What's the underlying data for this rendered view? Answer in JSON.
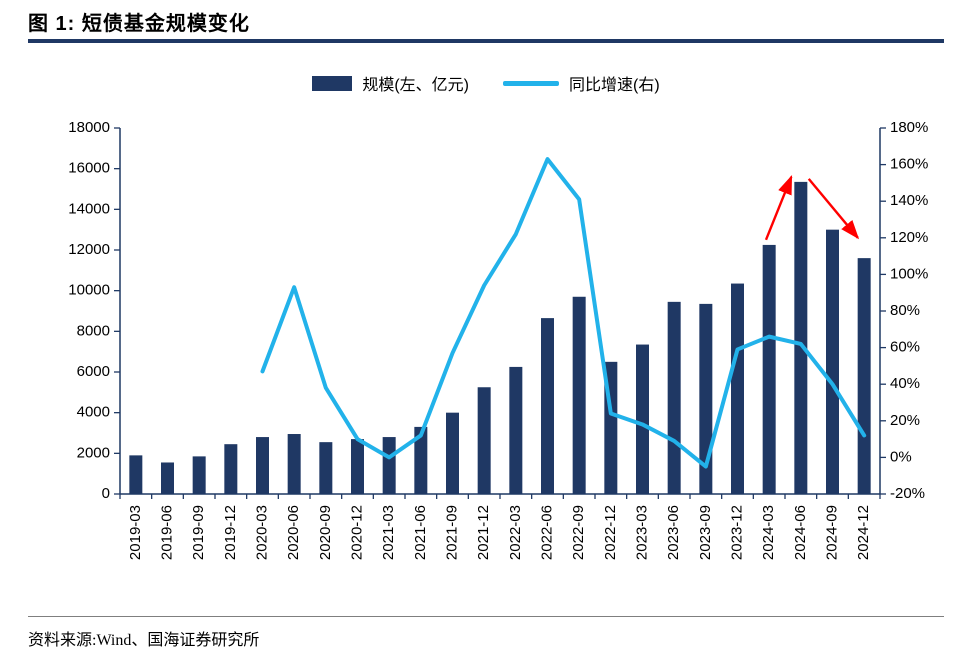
{
  "page": {
    "title": "图 1:  短债基金规模变化",
    "source": "资料来源:Wind、国海证券研究所"
  },
  "legend": [
    {
      "label": "规模(左、亿元)",
      "type": "bar",
      "color": "#1F3864"
    },
    {
      "label": "同比增速(右)",
      "type": "line",
      "color": "#22B2EA"
    }
  ],
  "chart_data": {
    "type": "bar+line",
    "title": "短债基金规模变化",
    "categories": [
      "2019-03",
      "2019-06",
      "2019-09",
      "2019-12",
      "2020-03",
      "2020-06",
      "2020-09",
      "2020-12",
      "2021-03",
      "2021-06",
      "2021-09",
      "2021-12",
      "2022-03",
      "2022-06",
      "2022-09",
      "2022-12",
      "2023-03",
      "2023-06",
      "2023-09",
      "2023-12",
      "2024-03",
      "2024-06",
      "2024-09",
      "2024-12"
    ],
    "series": [
      {
        "name": "规模(左、亿元)",
        "type": "bar",
        "axis": "left",
        "color": "#1F3864",
        "values": [
          1900,
          1550,
          1850,
          2450,
          2800,
          2950,
          2550,
          2700,
          2800,
          3300,
          4000,
          5250,
          6250,
          8650,
          9700,
          6500,
          7350,
          9450,
          9350,
          10350,
          12250,
          15350,
          13000,
          11600
        ]
      },
      {
        "name": "同比增速(右)",
        "type": "line",
        "axis": "right",
        "color": "#22B2EA",
        "values": [
          null,
          null,
          null,
          null,
          47,
          93,
          38,
          10,
          0,
          12,
          57,
          94,
          122,
          163,
          141,
          24,
          18,
          9,
          -5,
          59,
          66,
          62,
          40,
          12
        ]
      }
    ],
    "left_axis": {
      "min": 0,
      "max": 18000,
      "step": 2000,
      "suffix": ""
    },
    "right_axis": {
      "min": -20,
      "max": 180,
      "step": 20,
      "suffix": "%"
    },
    "grid": false,
    "legend_position": "top-center",
    "annotations": [
      {
        "type": "arrow",
        "color": "#FF0000",
        "from": {
          "i": 19.9,
          "v": 12500
        },
        "to": {
          "i": 20.7,
          "v": 15600
        }
      },
      {
        "type": "arrow",
        "color": "#FF0000",
        "from": {
          "i": 21.25,
          "v": 15500
        },
        "to": {
          "i": 22.8,
          "v": 12600
        }
      }
    ]
  }
}
